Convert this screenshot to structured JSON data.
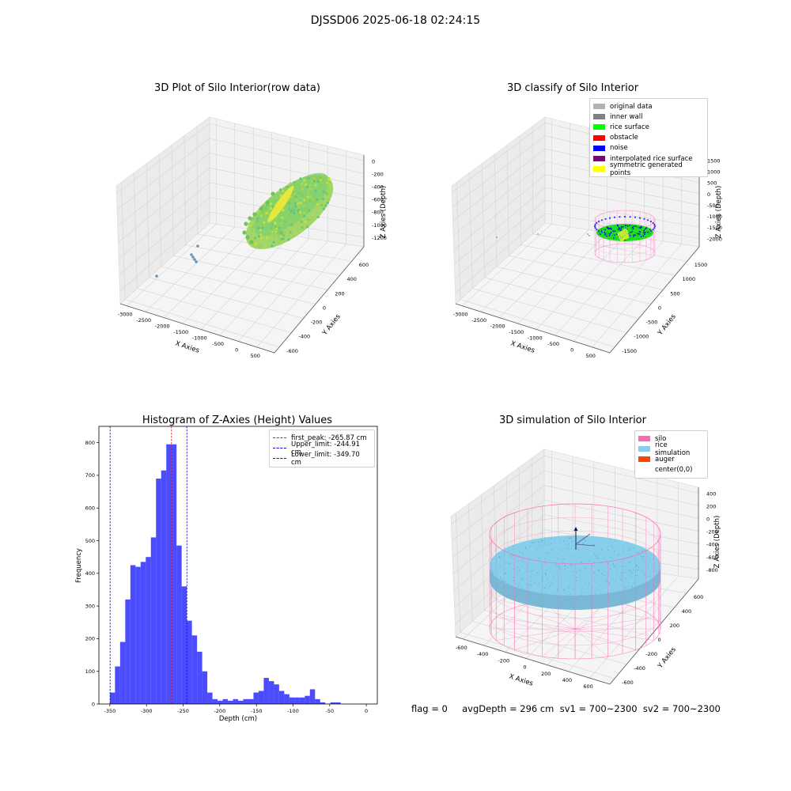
{
  "figure": {
    "suptitle": "DJSSD06 2025-06-18 02:24:15",
    "footer": "flag = 0     avgDepth = 296 cm  sv1 = 700~2300  sv2 = 700~2300"
  },
  "panels": {
    "raw": {
      "title": "3D Plot of Silo Interior(row data)",
      "xlabel": "X Axies",
      "ylabel": "Y Axies",
      "zlabel": "Z Axies (Depth)",
      "xticks": [
        "-3000",
        "-2500",
        "-2000",
        "-1500",
        "-1000",
        "-500",
        "0",
        "500"
      ],
      "yticks": [
        "-600",
        "-400",
        "-200",
        "0",
        "200",
        "400",
        "600"
      ],
      "zticks": [
        "0",
        "-200",
        "-400",
        "-600",
        "-800",
        "-1000",
        "-1200"
      ]
    },
    "classify": {
      "title": "3D classify of Silo Interior",
      "xlabel": "X Axies",
      "ylabel": "Y Axies",
      "zlabel": "Z Axies (Depth)",
      "xticks": [
        "-3000",
        "-2500",
        "-2000",
        "-1500",
        "-1000",
        "-500",
        "0",
        "500"
      ],
      "yticks": [
        "-1500",
        "-1000",
        "-500",
        "0",
        "500",
        "1000",
        "1500"
      ],
      "zticks": [
        "1500",
        "1000",
        "500",
        "0",
        "-500",
        "-1000",
        "-1500",
        "-2000"
      ],
      "legend": [
        {
          "label": "original data",
          "color": "#b2b2b2"
        },
        {
          "label": "inner wall",
          "color": "#808080"
        },
        {
          "label": "rice surface",
          "color": "#00ff00"
        },
        {
          "label": "obstacle",
          "color": "#ff0000"
        },
        {
          "label": "noise",
          "color": "#0000ff"
        },
        {
          "label": "interpolated rice surface",
          "color": "#800080"
        },
        {
          "label": "symmetric generated points",
          "color": "#ffff00"
        }
      ]
    },
    "simulation": {
      "title": "3D simulation of Silo Interior",
      "xlabel": "X Axies",
      "ylabel": "Y Axies",
      "zlabel": "Z Axies (Depth)",
      "xticks": [
        "-600",
        "-400",
        "-200",
        "0",
        "200",
        "400",
        "600"
      ],
      "yticks": [
        "-600",
        "-400",
        "-200",
        "0",
        "200",
        "400",
        "600"
      ],
      "zticks": [
        "400",
        "200",
        "0",
        "-200",
        "-400",
        "-600",
        "-800"
      ],
      "legend": [
        {
          "label": "silo",
          "color": "#ff69b4"
        },
        {
          "label": "rice simulation",
          "color": "#87ceeb"
        },
        {
          "label": "auger",
          "color": "#ff4500"
        },
        {
          "label": "center(0,0)",
          "color": "#ffffff"
        }
      ]
    }
  },
  "chart_data": [
    {
      "type": "histogram",
      "title": "Histogram of Z-Axies (Height) Values",
      "xlabel": "Depth (cm)",
      "ylabel": "Frequency",
      "xlim": [
        -365,
        15
      ],
      "ylim": [
        0,
        850
      ],
      "xticks": [
        -350,
        -300,
        -250,
        -200,
        -150,
        -100,
        -50,
        0
      ],
      "yticks": [
        0,
        100,
        200,
        300,
        400,
        500,
        600,
        700,
        800
      ],
      "bar_color": "#0000ff",
      "bin_start": -350,
      "bin_width": 7,
      "counts": [
        35,
        115,
        190,
        320,
        425,
        420,
        435,
        450,
        510,
        690,
        715,
        795,
        795,
        485,
        360,
        255,
        210,
        160,
        100,
        35,
        15,
        10,
        15,
        10,
        15,
        10,
        15,
        15,
        35,
        40,
        80,
        70,
        60,
        40,
        30,
        20,
        20,
        20,
        25,
        45,
        15,
        5,
        0,
        5,
        5,
        0
      ],
      "lines": [
        {
          "label": "first_peak: -265.87 cm",
          "x": -265.87,
          "color": "#ff0000"
        },
        {
          "label": "Upper_limit: -244.91 cm",
          "x": -244.91,
          "color": "#0000ff"
        },
        {
          "label": "Lower_limit: -349.70 cm",
          "x": -349.7,
          "color": "#0000ff"
        }
      ]
    }
  ]
}
